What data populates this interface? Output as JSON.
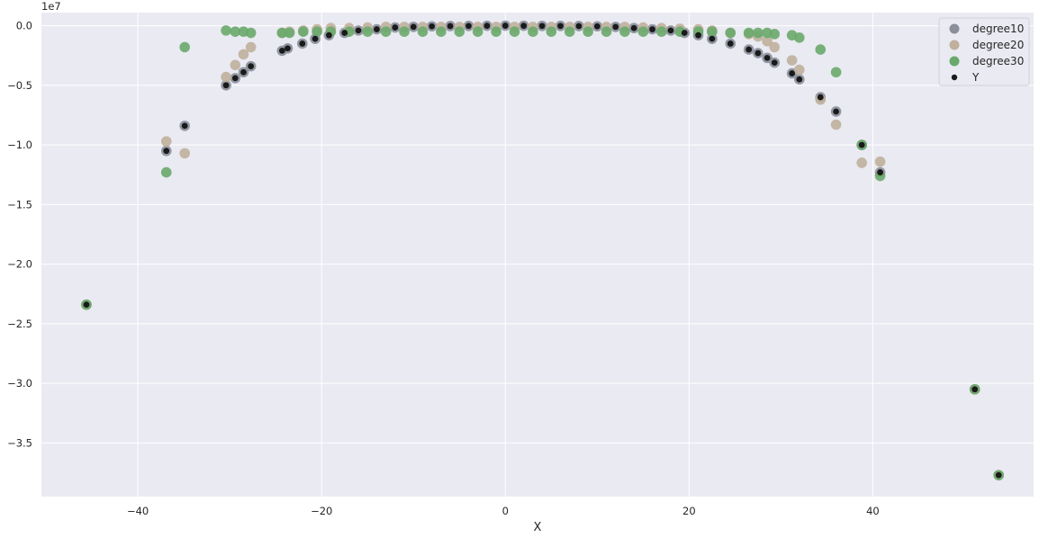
{
  "chart_data": {
    "type": "scatter",
    "title": "",
    "xlabel": "X",
    "ylabel": "",
    "y_offset_text": "1e7",
    "xlim": [
      -50.5,
      57.5
    ],
    "ylim": [
      -3.95,
      0.11
    ],
    "y_scale_factor": 10000000,
    "xticks": [
      -40,
      -20,
      0,
      20,
      40
    ],
    "xtick_labels": [
      "−40",
      "−20",
      "0",
      "20",
      "40"
    ],
    "yticks": [
      0.0,
      -0.5,
      -1.0,
      -1.5,
      -2.0,
      -2.5,
      -3.0,
      -3.5
    ],
    "ytick_labels": [
      "0.0",
      "−0.5",
      "−1.0",
      "−1.5",
      "−2.0",
      "−2.5",
      "−3.0",
      "−3.5"
    ],
    "grid": true,
    "legend_position": "top-right",
    "colors": {
      "plot_background": "#eaeaf2",
      "grid": "#ffffff",
      "degree10": "#8a8f9a",
      "degree20": "#c0b09c",
      "degree30": "#6aa86c",
      "Y": "#1a1a1a"
    },
    "series": [
      {
        "name": "degree10",
        "marker": "circle",
        "points": [
          [
            -45.6,
            -2.34
          ],
          [
            -36.9,
            -1.05
          ],
          [
            -34.9,
            -0.84
          ],
          [
            -30.4,
            -0.5
          ],
          [
            -29.4,
            -0.44
          ],
          [
            -28.5,
            -0.39
          ],
          [
            -27.7,
            -0.34
          ],
          [
            -24.3,
            -0.21
          ],
          [
            -23.7,
            -0.19
          ],
          [
            -22.1,
            -0.15
          ],
          [
            -20.7,
            -0.11
          ],
          [
            -19.2,
            -0.08
          ],
          [
            -17.5,
            -0.06
          ],
          [
            -16.0,
            -0.04
          ],
          [
            -14.0,
            -0.03
          ],
          [
            -12.0,
            -0.015
          ],
          [
            -10.0,
            -0.01
          ],
          [
            -8.0,
            -0.005
          ],
          [
            -6.0,
            -0.003
          ],
          [
            -4.0,
            -0.002
          ],
          [
            -2.0,
            -0.001
          ],
          [
            0.0,
            0.0
          ],
          [
            2.0,
            -0.001
          ],
          [
            4.0,
            -0.002
          ],
          [
            6.0,
            -0.002
          ],
          [
            8.0,
            -0.003
          ],
          [
            10.0,
            -0.005
          ],
          [
            12.0,
            -0.01
          ],
          [
            14.0,
            -0.02
          ],
          [
            16.0,
            -0.03
          ],
          [
            18.0,
            -0.04
          ],
          [
            19.5,
            -0.06
          ],
          [
            21.0,
            -0.08
          ],
          [
            22.5,
            -0.11
          ],
          [
            24.5,
            -0.15
          ],
          [
            26.5,
            -0.2
          ],
          [
            27.5,
            -0.23
          ],
          [
            28.5,
            -0.27
          ],
          [
            29.3,
            -0.31
          ],
          [
            31.2,
            -0.4
          ],
          [
            32.0,
            -0.45
          ],
          [
            34.3,
            -0.6
          ],
          [
            36.0,
            -0.72
          ],
          [
            38.8,
            -1.0
          ],
          [
            40.8,
            -1.23
          ],
          [
            51.1,
            -3.05
          ],
          [
            53.7,
            -3.77
          ]
        ]
      },
      {
        "name": "degree20",
        "marker": "circle",
        "points": [
          [
            -45.6,
            -2.34
          ],
          [
            -36.9,
            -0.97
          ],
          [
            -34.9,
            -1.07
          ],
          [
            -30.4,
            -0.43
          ],
          [
            -29.4,
            -0.33
          ],
          [
            -28.5,
            -0.24
          ],
          [
            -27.7,
            -0.18
          ],
          [
            -24.3,
            -0.06
          ],
          [
            -23.5,
            -0.05
          ],
          [
            -22.0,
            -0.04
          ],
          [
            -20.5,
            -0.03
          ],
          [
            -19.0,
            -0.02
          ],
          [
            -17.0,
            -0.02
          ],
          [
            -15.0,
            -0.015
          ],
          [
            -13.0,
            -0.01
          ],
          [
            -11.0,
            -0.01
          ],
          [
            -9.0,
            -0.01
          ],
          [
            -7.0,
            -0.01
          ],
          [
            -5.0,
            -0.01
          ],
          [
            -3.0,
            -0.01
          ],
          [
            -1.0,
            -0.01
          ],
          [
            1.0,
            -0.01
          ],
          [
            3.0,
            -0.01
          ],
          [
            5.0,
            -0.01
          ],
          [
            7.0,
            -0.01
          ],
          [
            9.0,
            -0.01
          ],
          [
            11.0,
            -0.01
          ],
          [
            13.0,
            -0.01
          ],
          [
            15.0,
            -0.015
          ],
          [
            17.0,
            -0.02
          ],
          [
            19.0,
            -0.025
          ],
          [
            21.0,
            -0.03
          ],
          [
            22.5,
            -0.04
          ],
          [
            24.5,
            -0.06
          ],
          [
            26.5,
            -0.07
          ],
          [
            27.5,
            -0.09
          ],
          [
            28.5,
            -0.13
          ],
          [
            29.3,
            -0.18
          ],
          [
            31.2,
            -0.29
          ],
          [
            32.0,
            -0.37
          ],
          [
            34.3,
            -0.62
          ],
          [
            36.0,
            -0.83
          ],
          [
            38.8,
            -1.15
          ],
          [
            40.8,
            -1.14
          ],
          [
            51.1,
            -3.05
          ],
          [
            53.7,
            -3.77
          ]
        ]
      },
      {
        "name": "degree30",
        "marker": "circle",
        "points": [
          [
            -45.6,
            -2.34
          ],
          [
            -36.9,
            -1.23
          ],
          [
            -34.9,
            -0.18
          ],
          [
            -30.4,
            -0.04
          ],
          [
            -29.4,
            -0.05
          ],
          [
            -28.5,
            -0.05
          ],
          [
            -27.7,
            -0.06
          ],
          [
            -24.3,
            -0.06
          ],
          [
            -23.5,
            -0.06
          ],
          [
            -22.0,
            -0.05
          ],
          [
            -20.5,
            -0.05
          ],
          [
            -19.0,
            -0.05
          ],
          [
            -17.0,
            -0.05
          ],
          [
            -15.0,
            -0.05
          ],
          [
            -13.0,
            -0.05
          ],
          [
            -11.0,
            -0.05
          ],
          [
            -9.0,
            -0.05
          ],
          [
            -7.0,
            -0.05
          ],
          [
            -5.0,
            -0.05
          ],
          [
            -3.0,
            -0.05
          ],
          [
            -1.0,
            -0.05
          ],
          [
            1.0,
            -0.05
          ],
          [
            3.0,
            -0.05
          ],
          [
            5.0,
            -0.05
          ],
          [
            7.0,
            -0.05
          ],
          [
            9.0,
            -0.05
          ],
          [
            11.0,
            -0.05
          ],
          [
            13.0,
            -0.05
          ],
          [
            15.0,
            -0.05
          ],
          [
            17.0,
            -0.05
          ],
          [
            19.0,
            -0.05
          ],
          [
            21.0,
            -0.05
          ],
          [
            22.5,
            -0.05
          ],
          [
            24.5,
            -0.06
          ],
          [
            26.5,
            -0.06
          ],
          [
            27.5,
            -0.06
          ],
          [
            28.5,
            -0.06
          ],
          [
            29.3,
            -0.07
          ],
          [
            31.2,
            -0.08
          ],
          [
            32.0,
            -0.1
          ],
          [
            34.3,
            -0.2
          ],
          [
            36.0,
            -0.39
          ],
          [
            38.8,
            -1.0
          ],
          [
            40.8,
            -1.26
          ],
          [
            51.1,
            -3.05
          ],
          [
            53.7,
            -3.77
          ]
        ]
      },
      {
        "name": "Y",
        "marker": "dot",
        "points": [
          [
            -45.6,
            -2.34
          ],
          [
            -36.9,
            -1.05
          ],
          [
            -34.9,
            -0.84
          ],
          [
            -30.4,
            -0.5
          ],
          [
            -29.4,
            -0.44
          ],
          [
            -28.5,
            -0.39
          ],
          [
            -27.7,
            -0.34
          ],
          [
            -24.3,
            -0.21
          ],
          [
            -23.7,
            -0.19
          ],
          [
            -22.1,
            -0.15
          ],
          [
            -20.7,
            -0.11
          ],
          [
            -19.2,
            -0.08
          ],
          [
            -17.5,
            -0.06
          ],
          [
            -16.0,
            -0.04
          ],
          [
            -14.0,
            -0.03
          ],
          [
            -12.0,
            -0.015
          ],
          [
            -10.0,
            -0.01
          ],
          [
            -8.0,
            -0.005
          ],
          [
            -6.0,
            -0.003
          ],
          [
            -4.0,
            -0.002
          ],
          [
            -2.0,
            -0.001
          ],
          [
            0.0,
            0.0
          ],
          [
            2.0,
            -0.001
          ],
          [
            4.0,
            -0.002
          ],
          [
            6.0,
            -0.002
          ],
          [
            8.0,
            -0.003
          ],
          [
            10.0,
            -0.005
          ],
          [
            12.0,
            -0.01
          ],
          [
            14.0,
            -0.02
          ],
          [
            16.0,
            -0.03
          ],
          [
            18.0,
            -0.04
          ],
          [
            19.5,
            -0.06
          ],
          [
            21.0,
            -0.08
          ],
          [
            22.5,
            -0.11
          ],
          [
            24.5,
            -0.15
          ],
          [
            26.5,
            -0.2
          ],
          [
            27.5,
            -0.23
          ],
          [
            28.5,
            -0.27
          ],
          [
            29.3,
            -0.31
          ],
          [
            31.2,
            -0.4
          ],
          [
            32.0,
            -0.45
          ],
          [
            34.3,
            -0.6
          ],
          [
            36.0,
            -0.72
          ],
          [
            38.8,
            -1.0
          ],
          [
            40.8,
            -1.23
          ],
          [
            51.1,
            -3.05
          ],
          [
            53.7,
            -3.77
          ]
        ]
      }
    ]
  }
}
